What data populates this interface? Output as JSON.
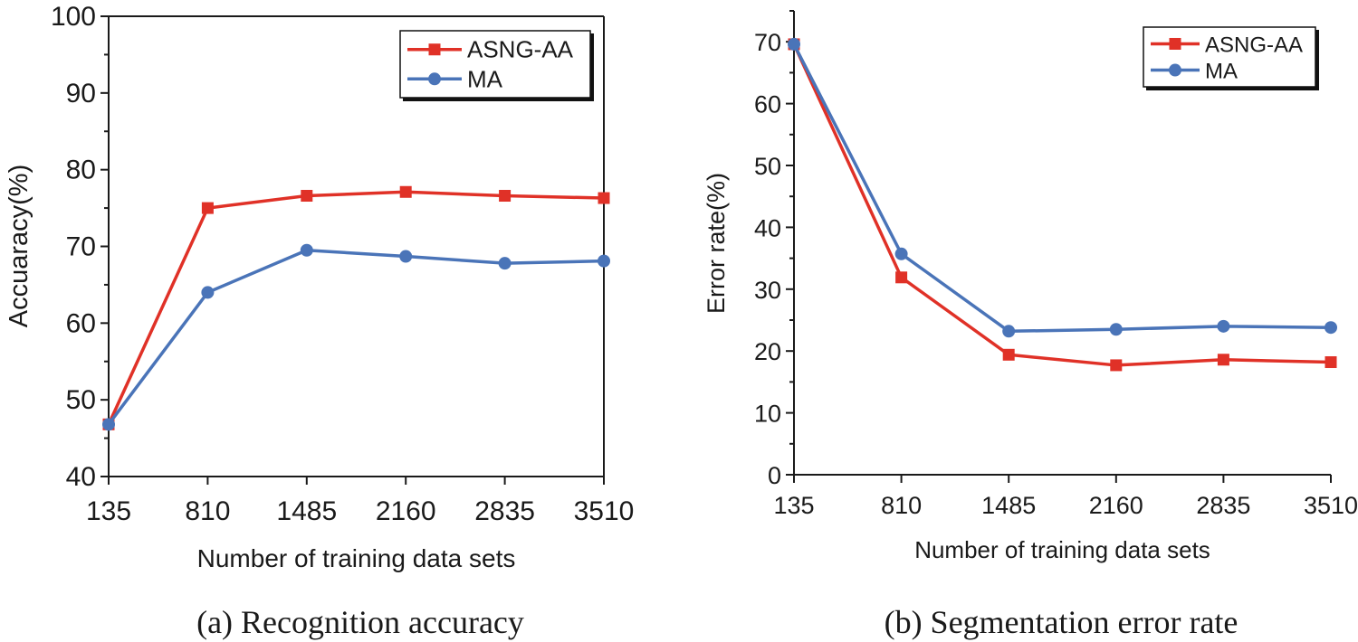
{
  "colors": {
    "asng": "#e03127",
    "ma": "#4a74b8",
    "axis": "#1a1a1a"
  },
  "chart_data": [
    {
      "type": "line",
      "caption": "(a) Recognition accuracy",
      "xlabel": "Number of training data sets",
      "ylabel": "Accuaracy(%)",
      "categories": [
        "135",
        "810",
        "1485",
        "2160",
        "2835",
        "3510"
      ],
      "ylim": [
        40,
        100
      ],
      "yticks": [
        "40",
        "50",
        "60",
        "70",
        "80",
        "90",
        "100"
      ],
      "legend_position": "top-right",
      "series": [
        {
          "name": "ASNG-AA",
          "marker": "square",
          "values": [
            46.8,
            75.0,
            76.6,
            77.1,
            76.6,
            76.3
          ]
        },
        {
          "name": "MA",
          "marker": "circle",
          "values": [
            46.8,
            64.0,
            69.5,
            68.7,
            67.8,
            68.1
          ]
        }
      ]
    },
    {
      "type": "line",
      "caption": "(b) Segmentation error rate",
      "xlabel": "Number of training data sets",
      "ylabel": "Error rate(%)",
      "categories": [
        "135",
        "810",
        "1485",
        "2160",
        "2835",
        "3510"
      ],
      "ylim": [
        0,
        75
      ],
      "yticks": [
        "0",
        "10",
        "20",
        "30",
        "40",
        "50",
        "60",
        "70"
      ],
      "legend_position": "top-right",
      "series": [
        {
          "name": "ASNG-AA",
          "marker": "square",
          "values": [
            69.6,
            31.9,
            19.4,
            17.7,
            18.6,
            18.2
          ]
        },
        {
          "name": "MA",
          "marker": "circle",
          "values": [
            69.6,
            35.7,
            23.2,
            23.5,
            24.0,
            23.8
          ]
        }
      ]
    }
  ]
}
